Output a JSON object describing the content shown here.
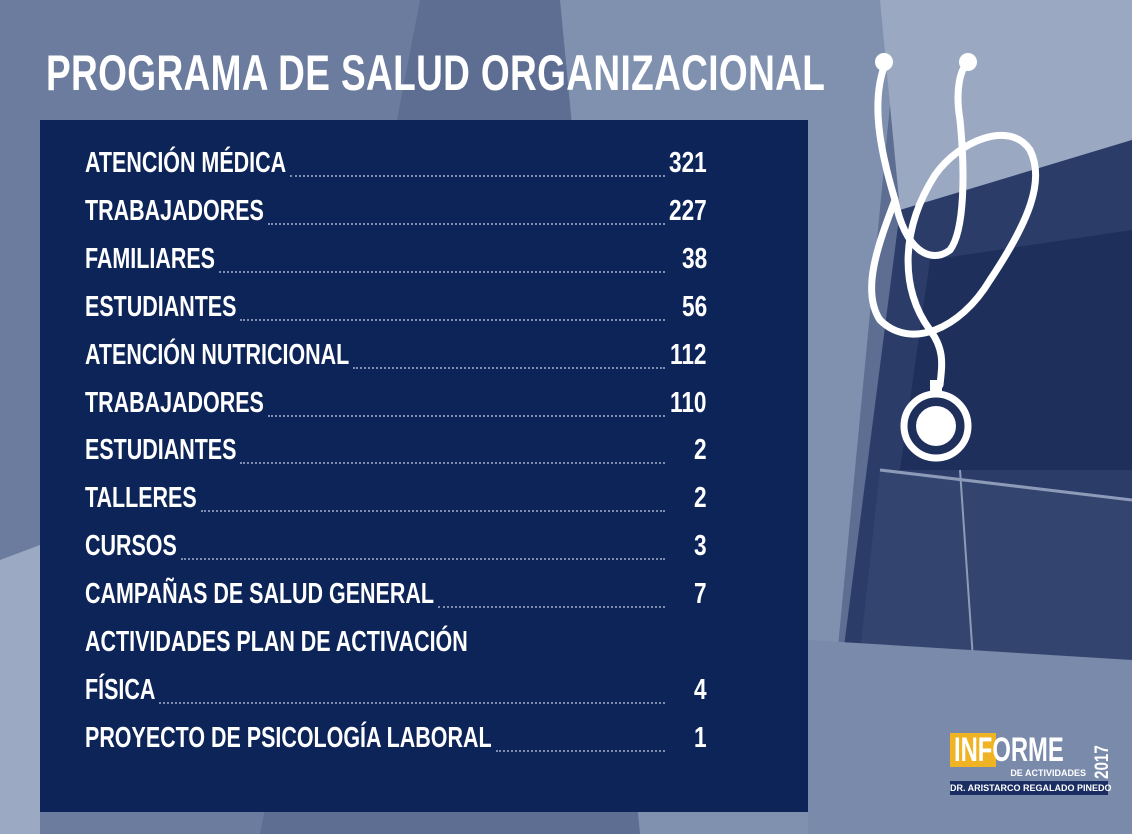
{
  "header": {
    "title": "PROGRAMA DE SALUD ORGANIZACIONAL"
  },
  "table": {
    "rows": [
      {
        "label": "ATENCIÓN MÉDICA",
        "value": 321
      },
      {
        "label": "TRABAJADORES",
        "value": 227
      },
      {
        "label": "FAMILIARES",
        "value": 38
      },
      {
        "label": "ESTUDIANTES",
        "value": 56
      },
      {
        "label": "ATENCIÓN NUTRICIONAL",
        "value": 112
      },
      {
        "label": "TRABAJADORES",
        "value": 110
      },
      {
        "label": "ESTUDIANTES",
        "value": 2
      },
      {
        "label": "TALLERES",
        "value": 2
      },
      {
        "label": "CURSOS",
        "value": 3
      },
      {
        "label": "CAMPAÑAS DE SALUD GENERAL",
        "value": 7
      },
      {
        "label_lines": [
          "ACTIVIDADES PLAN DE ACTIVACIÓN",
          "FÍSICA"
        ],
        "value": 4
      },
      {
        "label": "PROYECTO DE PSICOLOGÍA LABORAL",
        "value": 1
      }
    ]
  },
  "brand": {
    "highlight": "IN",
    "word": "FORME",
    "subtitle": "DE ACTIVIDADES",
    "year": "2017",
    "author": "DR. ARISTARCO REGALADO PINEDO"
  }
}
